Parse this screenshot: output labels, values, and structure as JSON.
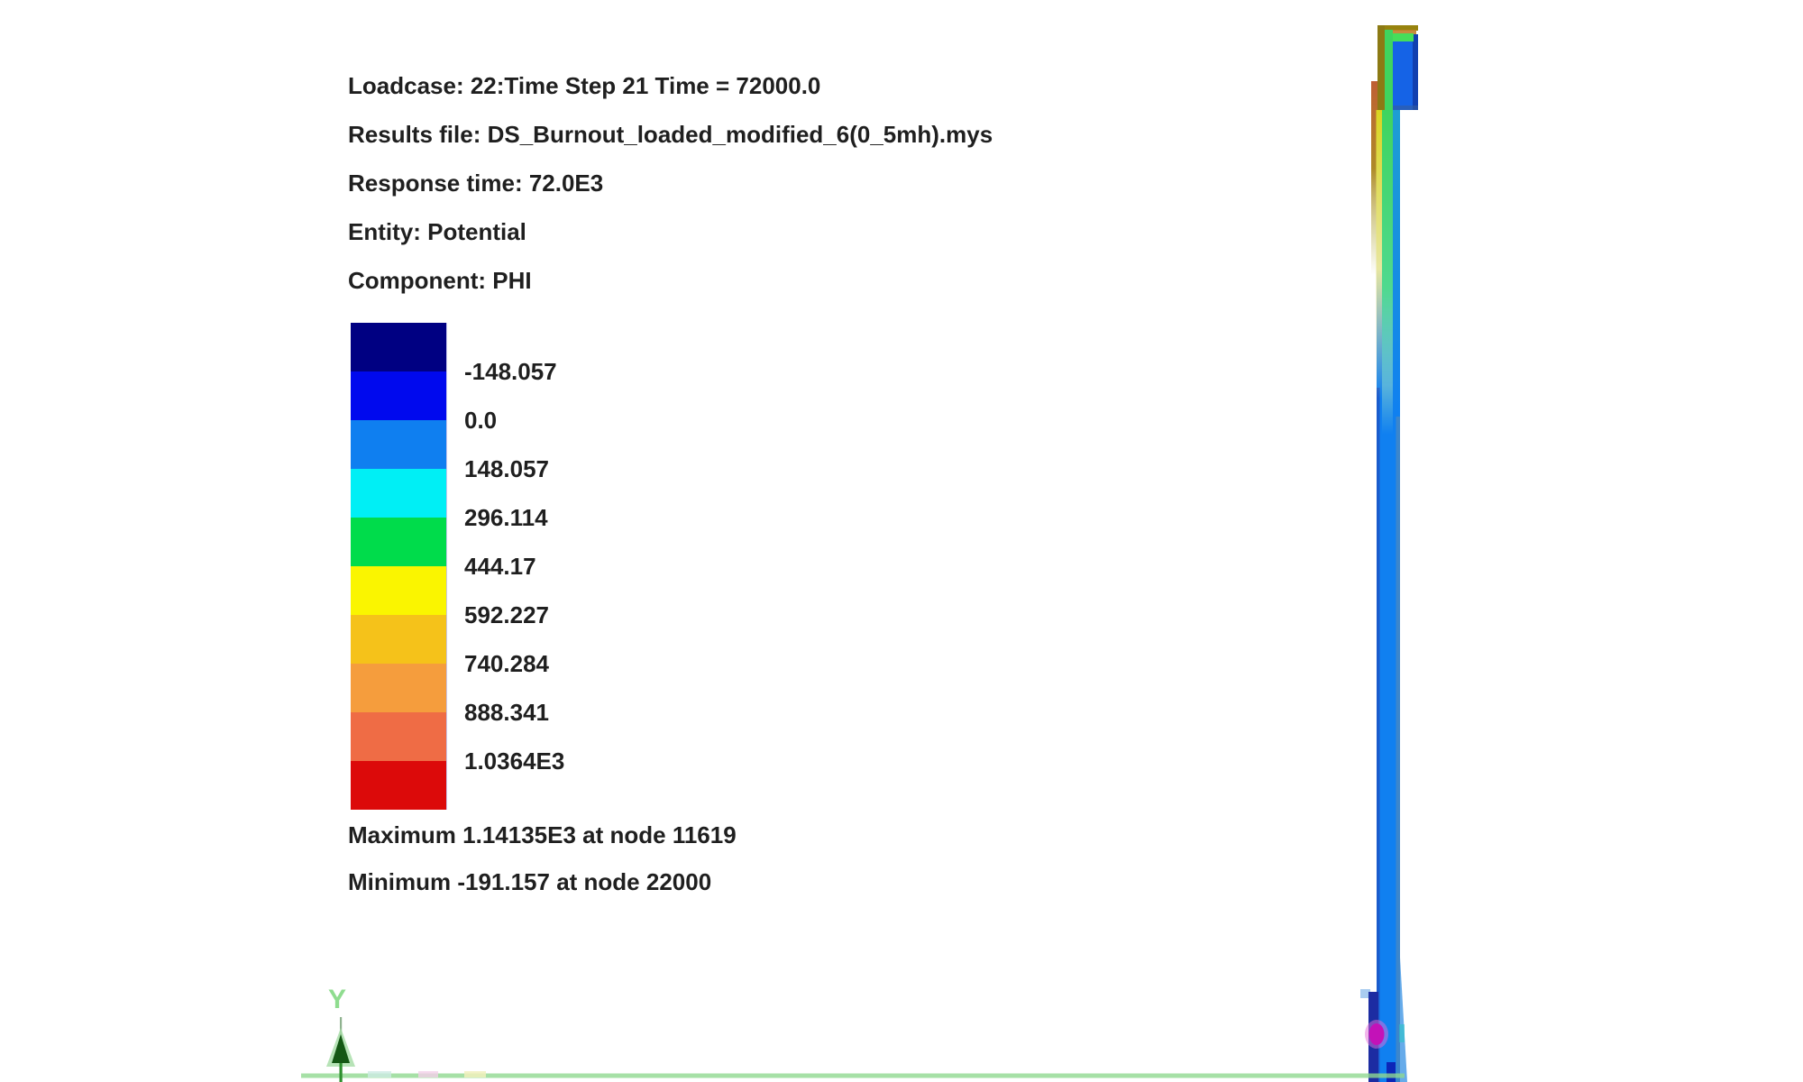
{
  "view": {
    "background": "#FFFFFF"
  },
  "header": {
    "lines": [
      "Loadcase: 22:Time Step 21 Time = 72000.0",
      "Results file: DS_Burnout_loaded_modified_6(0_5mh).mys",
      "Response time: 72.0E3",
      "Entity: Potential",
      "Component: PHI"
    ]
  },
  "legend": {
    "band_colors": [
      "#000082",
      "#0009EE",
      "#0F7FF0",
      "#00EFF5",
      "#00DC4B",
      "#FAF500",
      "#F5C21A",
      "#F59D3D",
      "#EF6C45",
      "#DC0A0A"
    ],
    "labels": [
      "-148.057",
      "0.0",
      "148.057",
      "296.114",
      "444.17",
      "592.227",
      "740.284",
      "888.341",
      "1.0364E3"
    ],
    "maximum": "Maximum 1.14135E3 at node 11619",
    "minimum": "Minimum -191.157 at node 22000"
  },
  "axis": {
    "label": "Y",
    "label_color": "#8FDC8F",
    "arrow_color": "#155815",
    "stem_color": "#2E8F2E"
  },
  "model": {
    "colors": {
      "body": "#1080F0",
      "head_blue": "#1563E6",
      "head_blue_edge": "#1140B0",
      "base_navy": "#1C2CA2",
      "marker_magenta": "#C312B8",
      "baseline_green": "#90D890"
    }
  }
}
